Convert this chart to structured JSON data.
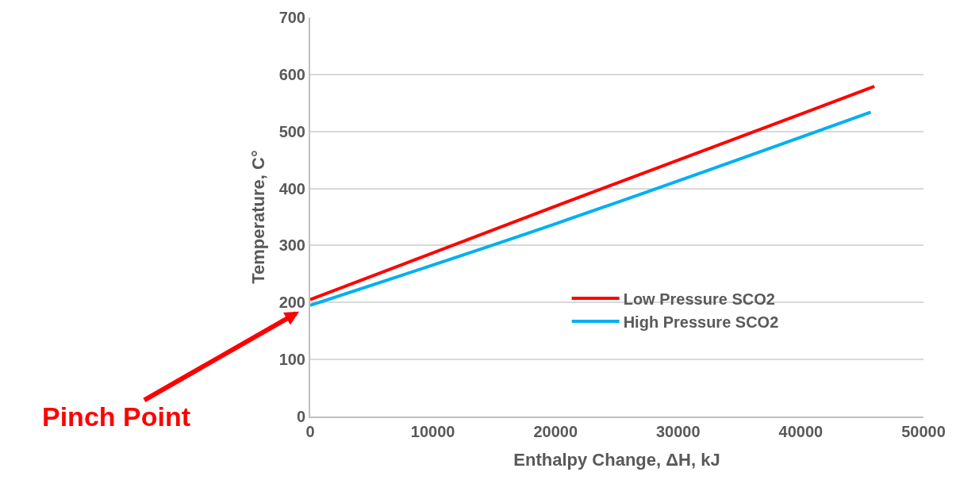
{
  "chart_data": {
    "type": "line",
    "xlabel": "Enthalpy Change, ΔH, kJ",
    "ylabel": "Temperature, C°",
    "xlim": [
      0,
      50000
    ],
    "xticks": [
      0,
      10000,
      20000,
      30000,
      40000,
      50000
    ],
    "ylim": [
      0,
      700
    ],
    "yticks": [
      0,
      100,
      200,
      300,
      400,
      500,
      600,
      700
    ],
    "grid": "y",
    "legend": "bottom right",
    "marker": "none",
    "line_style": "solid",
    "series": [
      {
        "name": "Low Pressure SCO2",
        "color": "#ff0000",
        "x": [
          0,
          20000,
          46000
        ],
        "values": [
          205,
          369,
          579
        ]
      },
      {
        "name": "High Pressure SCO2",
        "color": "#00b0f0",
        "x": [
          0,
          20000,
          45700
        ],
        "values": [
          195,
          338,
          534
        ]
      }
    ],
    "annotations": [
      {
        "text": "Pinch Point",
        "x": 0,
        "y": 195
      }
    ]
  }
}
